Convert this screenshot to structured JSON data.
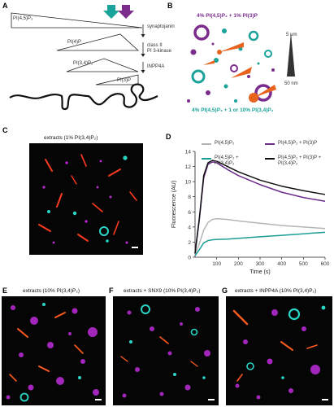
{
  "panels": {
    "A": {
      "label": "A",
      "lipids": [
        "PI(4,5)P₂",
        "PI(4)P",
        "PI(3,4)P₂",
        "PI(3)P"
      ],
      "enzymes": [
        "synaptojanin",
        "class II",
        "PI 3-kinase",
        "INPP4A"
      ],
      "arrow_colors": {
        "teal": "#1aa39a",
        "purple": "#7b2d8e"
      }
    },
    "B": {
      "label": "B",
      "top_text": "4% PI(4,5)P₂ + 1% PI(3)P",
      "bottom_text": "4% PI(4,5)P₂ + 1 or 10% PI(3,4)P₂",
      "scale_top": "5 μm",
      "scale_bottom": "50 nm",
      "colors": {
        "top": "#7b2d8e",
        "bottom": "#1aa39a"
      }
    },
    "C": {
      "label": "C",
      "title": "extracts (1% PI(3,4)P₂)"
    },
    "D": {
      "label": "D",
      "legend": [
        {
          "text": "PI(4,5)P₂",
          "color": "#b5b5b5"
        },
        {
          "text": "PI(4,5)P₂ + PI(3,4)P₂",
          "color": "#1a9e97"
        },
        {
          "text": "PI(4,5)P₂ + PI(3)P",
          "color": "#6a2d8c"
        },
        {
          "text": "PI(4,5)P₂ + PI(3)P + PI(3,4)P₂",
          "color": "#111111"
        }
      ]
    },
    "E": {
      "label": "E",
      "title": "extracts (10% PI(3,4)P₂)"
    },
    "F": {
      "label": "F",
      "title": "extracts + SNX9 (10% PI(3,4)P₂)"
    },
    "G": {
      "label": "G",
      "title": "extracts + INPP4A (10% PI(3,4)P₂)"
    }
  },
  "chart_data": {
    "type": "line",
    "xlabel": "Time (s)",
    "ylabel": "Fluorescence (AU)",
    "xlim": [
      0,
      600
    ],
    "ylim": [
      0,
      14
    ],
    "xticks": [
      100,
      200,
      300,
      400,
      500,
      600
    ],
    "yticks": [
      0,
      2,
      4,
      6,
      8,
      10,
      12,
      14
    ],
    "x": [
      0,
      20,
      40,
      60,
      80,
      100,
      150,
      200,
      300,
      400,
      500,
      600
    ],
    "series": [
      {
        "name": "PI(4,5)P₂",
        "color": "#b5b5b5",
        "values": [
          0.3,
          1.8,
          3.6,
          4.6,
          5.0,
          5.1,
          5.0,
          4.8,
          4.5,
          4.2,
          4.0,
          3.8
        ]
      },
      {
        "name": "PI(4,5)P₂ + PI(3,4)P₂",
        "color": "#1a9e97",
        "values": [
          0.2,
          1.0,
          1.9,
          2.2,
          2.3,
          2.35,
          2.4,
          2.5,
          2.7,
          2.9,
          3.1,
          3.3
        ]
      },
      {
        "name": "PI(4,5)P₂ + PI(3)P",
        "color": "#6a2d8c",
        "values": [
          0.5,
          5.0,
          10.5,
          12.3,
          12.6,
          12.5,
          11.6,
          10.8,
          9.6,
          8.6,
          7.9,
          7.4
        ]
      },
      {
        "name": "PI(4,5)P₂ + PI(3)P + PI(3,4)P₂",
        "color": "#111111",
        "values": [
          0.5,
          5.2,
          10.8,
          12.5,
          12.8,
          12.7,
          12.0,
          11.3,
          10.2,
          9.4,
          8.8,
          8.3
        ]
      }
    ]
  }
}
